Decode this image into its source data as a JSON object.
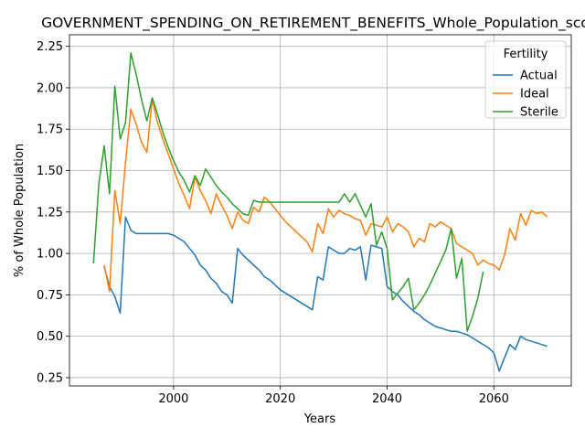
{
  "chart_data": {
    "type": "line",
    "title": "GOVERNMENT_SPENDING_ON_RETIREMENT_BENEFITS_Whole_Population_sco",
    "xlabel": "Years",
    "ylabel": "% of Whole Population",
    "xlim": [
      1980.5,
      2074.5
    ],
    "ylim": [
      0.2,
      2.32
    ],
    "xticks": [
      2000,
      2020,
      2040,
      2060
    ],
    "xtick_labels": [
      "2000",
      "2020",
      "2040",
      "2060"
    ],
    "yticks": [
      0.25,
      0.5,
      0.75,
      1.0,
      1.25,
      1.5,
      1.75,
      2.0,
      2.25
    ],
    "ytick_labels": [
      "0.25",
      "0.50",
      "0.75",
      "1.00",
      "1.25",
      "1.50",
      "1.75",
      "2.00",
      "2.25"
    ],
    "grid": true,
    "legend": {
      "title": "Fertility",
      "placement": "top-right"
    },
    "series": [
      {
        "name": "Actual",
        "color": "#1f77b4",
        "points": [
          [
            1987,
            0.92
          ],
          [
            1988,
            0.8
          ],
          [
            1989,
            0.74
          ],
          [
            1990,
            0.64
          ],
          [
            1991,
            1.22
          ],
          [
            1992,
            1.14
          ],
          [
            1993,
            1.12
          ],
          [
            1994,
            1.12
          ],
          [
            1995,
            1.12
          ],
          [
            1996,
            1.12
          ],
          [
            1997,
            1.12
          ],
          [
            1998,
            1.12
          ],
          [
            1999,
            1.12
          ],
          [
            2000,
            1.11
          ],
          [
            2001,
            1.09
          ],
          [
            2002,
            1.07
          ],
          [
            2003,
            1.03
          ],
          [
            2004,
            0.99
          ],
          [
            2005,
            0.93
          ],
          [
            2006,
            0.9
          ],
          [
            2007,
            0.85
          ],
          [
            2008,
            0.82
          ],
          [
            2009,
            0.77
          ],
          [
            2010,
            0.75
          ],
          [
            2011,
            0.7
          ],
          [
            2012,
            1.03
          ],
          [
            2013,
            0.99
          ],
          [
            2014,
            0.96
          ],
          [
            2015,
            0.93
          ],
          [
            2016,
            0.9
          ],
          [
            2017,
            0.86
          ],
          [
            2018,
            0.84
          ],
          [
            2019,
            0.81
          ],
          [
            2020,
            0.78
          ],
          [
            2021,
            0.76
          ],
          [
            2022,
            0.74
          ],
          [
            2023,
            0.72
          ],
          [
            2024,
            0.7
          ],
          [
            2025,
            0.68
          ],
          [
            2026,
            0.66
          ],
          [
            2027,
            0.86
          ],
          [
            2028,
            0.84
          ],
          [
            2029,
            1.04
          ],
          [
            2030,
            1.02
          ],
          [
            2031,
            1.0
          ],
          [
            2032,
            1.0
          ],
          [
            2033,
            1.03
          ],
          [
            2034,
            1.02
          ],
          [
            2035,
            1.04
          ],
          [
            2036,
            0.84
          ],
          [
            2037,
            1.05
          ],
          [
            2038,
            1.04
          ],
          [
            2039,
            1.03
          ],
          [
            2040,
            0.8
          ],
          [
            2041,
            0.77
          ],
          [
            2042,
            0.75
          ],
          [
            2043,
            0.71
          ],
          [
            2044,
            0.68
          ],
          [
            2045,
            0.65
          ],
          [
            2046,
            0.63
          ],
          [
            2047,
            0.6
          ],
          [
            2048,
            0.58
          ],
          [
            2049,
            0.56
          ],
          [
            2050,
            0.55
          ],
          [
            2051,
            0.54
          ],
          [
            2052,
            0.53
          ],
          [
            2053,
            0.53
          ],
          [
            2054,
            0.52
          ],
          [
            2055,
            0.51
          ],
          [
            2056,
            0.49
          ],
          [
            2057,
            0.47
          ],
          [
            2058,
            0.45
          ],
          [
            2059,
            0.43
          ],
          [
            2060,
            0.4
          ],
          [
            2061,
            0.29
          ],
          [
            2062,
            0.37
          ],
          [
            2063,
            0.45
          ],
          [
            2064,
            0.42
          ],
          [
            2065,
            0.5
          ],
          [
            2066,
            0.48
          ],
          [
            2067,
            0.47
          ],
          [
            2068,
            0.46
          ],
          [
            2069,
            0.45
          ],
          [
            2070,
            0.44
          ]
        ]
      },
      {
        "name": "Ideal",
        "color": "#ff7f0e",
        "points": [
          [
            1987,
            0.93
          ],
          [
            1988,
            0.77
          ],
          [
            1989,
            1.38
          ],
          [
            1990,
            1.18
          ],
          [
            1991,
            1.55
          ],
          [
            1992,
            1.87
          ],
          [
            1993,
            1.78
          ],
          [
            1994,
            1.67
          ],
          [
            1995,
            1.61
          ],
          [
            1996,
            1.93
          ],
          [
            1997,
            1.79
          ],
          [
            1998,
            1.69
          ],
          [
            1999,
            1.6
          ],
          [
            2000,
            1.51
          ],
          [
            2001,
            1.42
          ],
          [
            2002,
            1.35
          ],
          [
            2003,
            1.27
          ],
          [
            2004,
            1.46
          ],
          [
            2005,
            1.38
          ],
          [
            2006,
            1.32
          ],
          [
            2007,
            1.24
          ],
          [
            2008,
            1.36
          ],
          [
            2009,
            1.29
          ],
          [
            2010,
            1.23
          ],
          [
            2011,
            1.15
          ],
          [
            2012,
            1.25
          ],
          [
            2013,
            1.2
          ],
          [
            2014,
            1.18
          ],
          [
            2015,
            1.28
          ],
          [
            2016,
            1.25
          ],
          [
            2017,
            1.34
          ],
          [
            2018,
            1.31
          ],
          [
            2019,
            1.27
          ],
          [
            2020,
            1.23
          ],
          [
            2021,
            1.19
          ],
          [
            2022,
            1.16
          ],
          [
            2023,
            1.13
          ],
          [
            2024,
            1.1
          ],
          [
            2025,
            1.07
          ],
          [
            2026,
            1.01
          ],
          [
            2027,
            1.18
          ],
          [
            2028,
            1.12
          ],
          [
            2029,
            1.27
          ],
          [
            2030,
            1.22
          ],
          [
            2031,
            1.26
          ],
          [
            2032,
            1.24
          ],
          [
            2033,
            1.23
          ],
          [
            2034,
            1.21
          ],
          [
            2035,
            1.2
          ],
          [
            2036,
            1.11
          ],
          [
            2037,
            1.18
          ],
          [
            2038,
            1.17
          ],
          [
            2039,
            1.16
          ],
          [
            2040,
            1.22
          ],
          [
            2041,
            1.13
          ],
          [
            2042,
            1.18
          ],
          [
            2043,
            1.16
          ],
          [
            2044,
            1.13
          ],
          [
            2045,
            1.04
          ],
          [
            2046,
            1.09
          ],
          [
            2047,
            1.07
          ],
          [
            2048,
            1.18
          ],
          [
            2049,
            1.16
          ],
          [
            2050,
            1.19
          ],
          [
            2051,
            1.17
          ],
          [
            2052,
            1.15
          ],
          [
            2053,
            1.06
          ],
          [
            2054,
            1.04
          ],
          [
            2055,
            1.02
          ],
          [
            2056,
            1.0
          ],
          [
            2057,
            0.93
          ],
          [
            2058,
            0.96
          ],
          [
            2059,
            0.94
          ],
          [
            2060,
            0.93
          ],
          [
            2061,
            0.9
          ],
          [
            2062,
            0.99
          ],
          [
            2063,
            1.15
          ],
          [
            2064,
            1.08
          ],
          [
            2065,
            1.24
          ],
          [
            2066,
            1.17
          ],
          [
            2067,
            1.26
          ],
          [
            2068,
            1.24
          ],
          [
            2069,
            1.25
          ],
          [
            2070,
            1.22
          ]
        ]
      },
      {
        "name": "Sterile",
        "color": "#2ca02c",
        "points": [
          [
            1985,
            0.94
          ],
          [
            1986,
            1.42
          ],
          [
            1987,
            1.65
          ],
          [
            1988,
            1.36
          ],
          [
            1989,
            2.01
          ],
          [
            1990,
            1.69
          ],
          [
            1991,
            1.79
          ],
          [
            1992,
            2.21
          ],
          [
            1993,
            2.08
          ],
          [
            1994,
            1.93
          ],
          [
            1995,
            1.8
          ],
          [
            1996,
            1.94
          ],
          [
            1997,
            1.84
          ],
          [
            1998,
            1.73
          ],
          [
            1999,
            1.64
          ],
          [
            2000,
            1.56
          ],
          [
            2001,
            1.49
          ],
          [
            2002,
            1.44
          ],
          [
            2003,
            1.37
          ],
          [
            2004,
            1.47
          ],
          [
            2005,
            1.41
          ],
          [
            2006,
            1.51
          ],
          [
            2007,
            1.46
          ],
          [
            2008,
            1.41
          ],
          [
            2009,
            1.37
          ],
          [
            2010,
            1.34
          ],
          [
            2011,
            1.3
          ],
          [
            2012,
            1.27
          ],
          [
            2013,
            1.24
          ],
          [
            2014,
            1.23
          ],
          [
            2015,
            1.32
          ],
          [
            2016,
            1.31
          ],
          [
            2017,
            1.31
          ],
          [
            2018,
            1.31
          ],
          [
            2019,
            1.31
          ],
          [
            2020,
            1.31
          ],
          [
            2021,
            1.31
          ],
          [
            2022,
            1.31
          ],
          [
            2023,
            1.31
          ],
          [
            2024,
            1.31
          ],
          [
            2025,
            1.31
          ],
          [
            2026,
            1.31
          ],
          [
            2027,
            1.31
          ],
          [
            2028,
            1.31
          ],
          [
            2029,
            1.31
          ],
          [
            2030,
            1.31
          ],
          [
            2031,
            1.31
          ],
          [
            2032,
            1.36
          ],
          [
            2033,
            1.31
          ],
          [
            2034,
            1.36
          ],
          [
            2035,
            1.29
          ],
          [
            2036,
            1.22
          ],
          [
            2037,
            1.3
          ],
          [
            2038,
            1.05
          ],
          [
            2039,
            1.13
          ],
          [
            2040,
            1.03
          ],
          [
            2041,
            0.72
          ],
          [
            2042,
            0.76
          ],
          [
            2043,
            0.8
          ],
          [
            2044,
            0.85
          ],
          [
            2045,
            0.66
          ],
          [
            2046,
            0.7
          ],
          [
            2047,
            0.75
          ],
          [
            2048,
            0.81
          ],
          [
            2049,
            0.88
          ],
          [
            2050,
            0.95
          ],
          [
            2051,
            1.02
          ],
          [
            2052,
            1.15
          ],
          [
            2053,
            0.85
          ],
          [
            2054,
            0.97
          ],
          [
            2055,
            0.53
          ],
          [
            2056,
            0.62
          ],
          [
            2057,
            0.73
          ],
          [
            2058,
            0.89
          ]
        ]
      }
    ]
  }
}
